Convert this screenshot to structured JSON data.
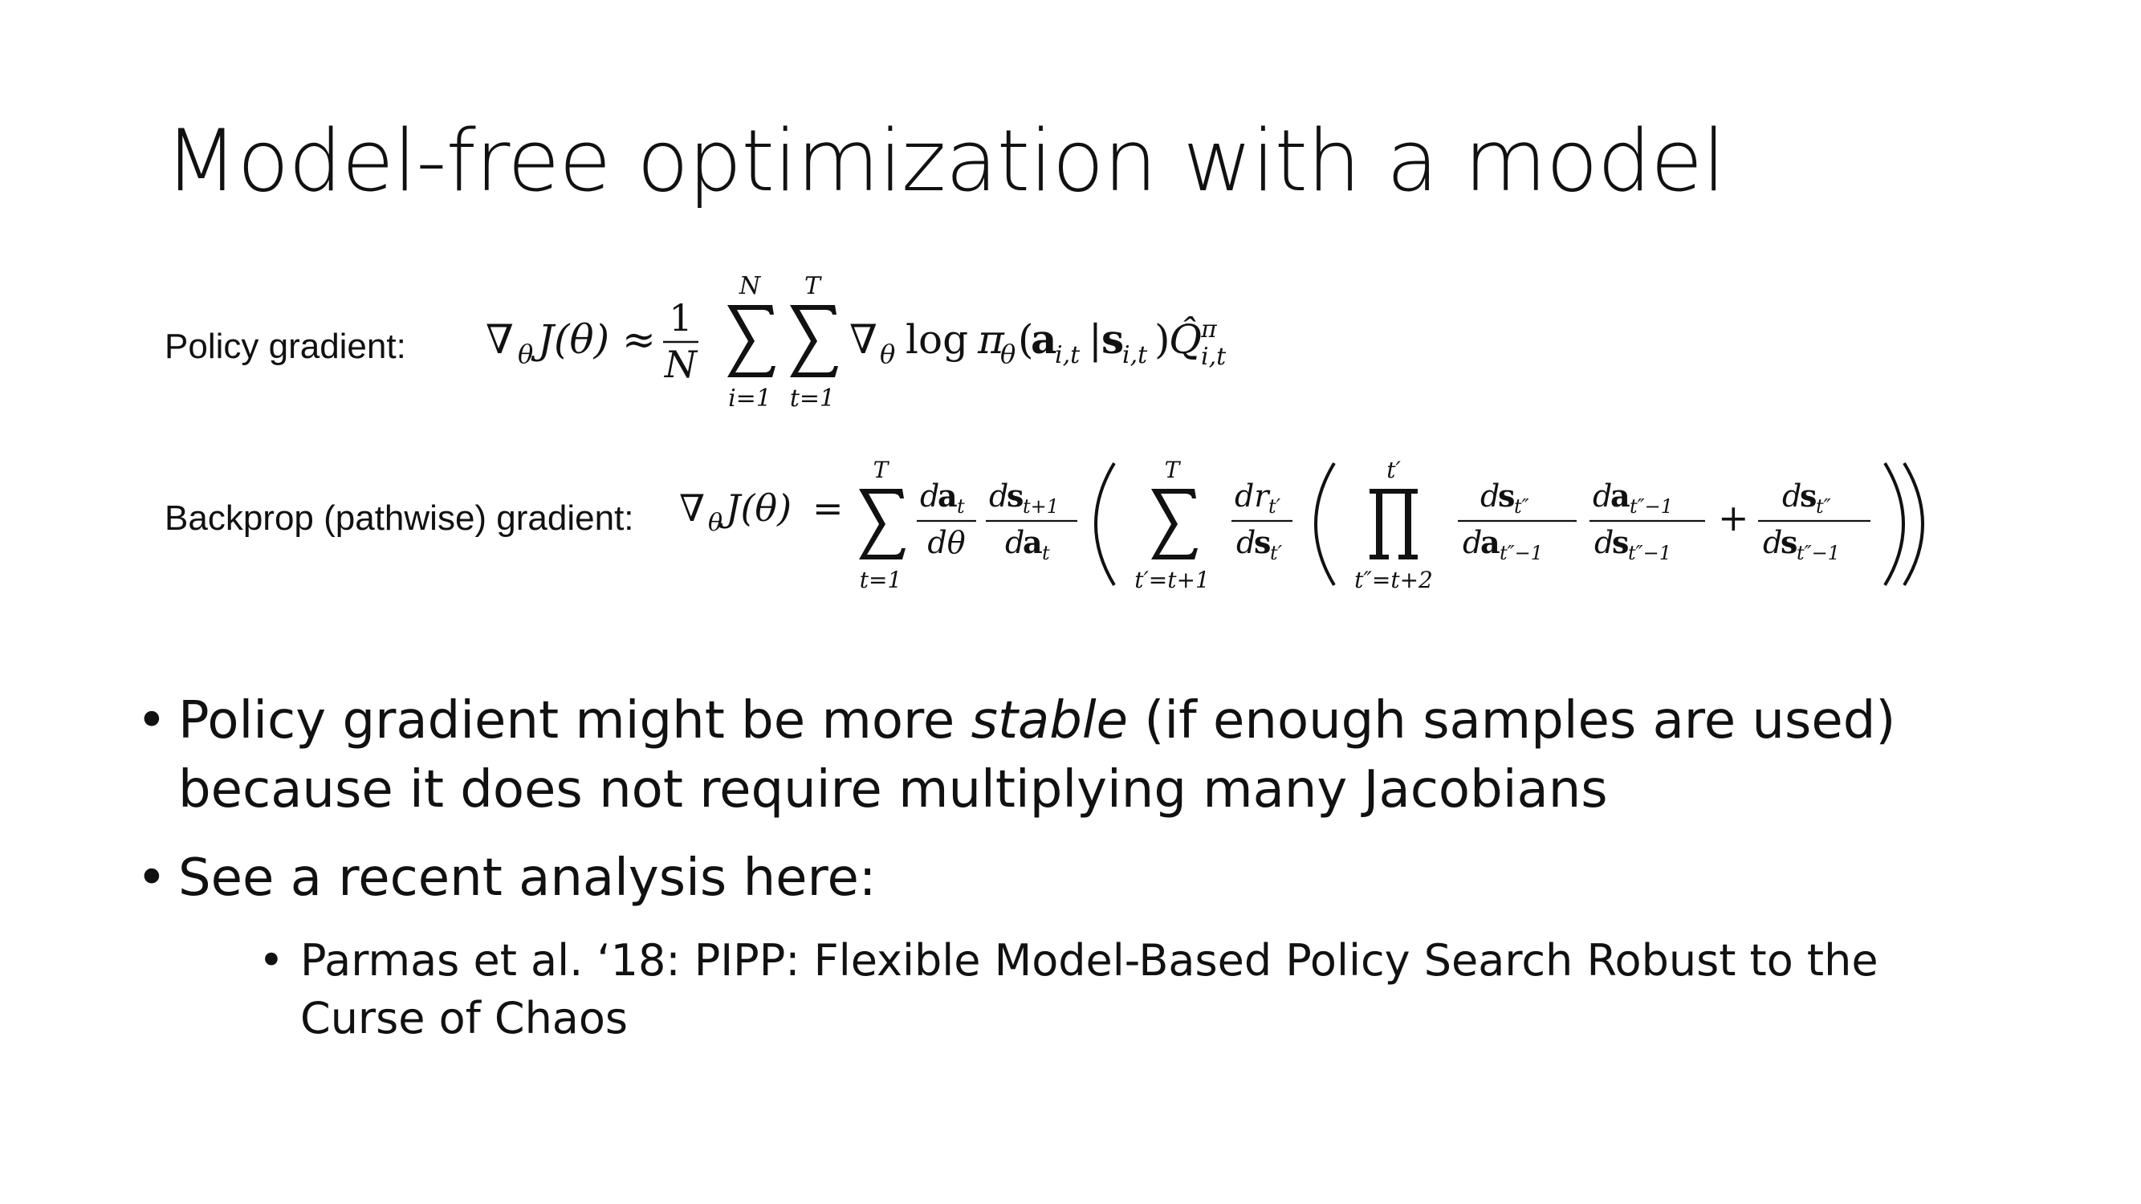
{
  "slide": {
    "title": "Model-free optimization with a model"
  },
  "equations": {
    "policy_gradient": {
      "label": "Policy gradient:",
      "nabla": "∇",
      "theta_sub": "θ",
      "lhs": "J(θ)",
      "approx": "≈",
      "frac_num": "1",
      "frac_den": "N",
      "sum1_top": "N",
      "sum1_bottom": "i=1",
      "sum2_top": "T",
      "sum2_bottom": "t=1",
      "log": "log",
      "pi": "π",
      "action": "a",
      "action_sub": "i,t",
      "bar": "|",
      "state": "s",
      "state_sub": "i,t",
      "q": "Q̂",
      "q_sup": "π",
      "q_sub": "i,t"
    },
    "backprop_gradient": {
      "label": "Backprop (pathwise) gradient:",
      "nabla": "∇",
      "theta_sub": "θ",
      "lhs": "J(θ)",
      "equals": "=",
      "sum_top": "T",
      "sum_bottom": "t=1",
      "f1_num": "da",
      "f1_num_sub": "t",
      "f1_den": "dθ",
      "f2_num": "ds",
      "f2_num_sub": "t+1",
      "f2_den": "da",
      "f2_den_sub": "t",
      "sum2_top": "T",
      "sum2_bottom": "t′=t+1",
      "f3_num": "dr",
      "f3_num_sub": "t′",
      "f3_den": "ds",
      "f3_den_sub": "t′",
      "prod_top": "t′",
      "prod_bottom": "t″=t+2",
      "f4_num": "ds",
      "f4_num_sub": "t″",
      "f4_den": "da",
      "f4_den_sub": "t″−1",
      "f5_num": "da",
      "f5_num_sub": "t″−1",
      "f5_den": "ds",
      "f5_den_sub": "t″−1",
      "plus": "+",
      "f6_num": "ds",
      "f6_num_sub": "t″",
      "f6_den": "ds",
      "f6_den_sub": "t″−1"
    }
  },
  "bullets": [
    {
      "marker": "•",
      "text_before": "Policy gradient might be more ",
      "text_emph": "stable",
      "text_after": " (if enough samples are used) because it does not require multiplying many Jacobians"
    },
    {
      "marker": "•",
      "text": "See a recent analysis here:",
      "sub": {
        "marker": "•",
        "text": "Parmas et al. ‘18: PIPP: Flexible Model-Based Policy Search Robust to the Curse of Chaos"
      }
    }
  ]
}
